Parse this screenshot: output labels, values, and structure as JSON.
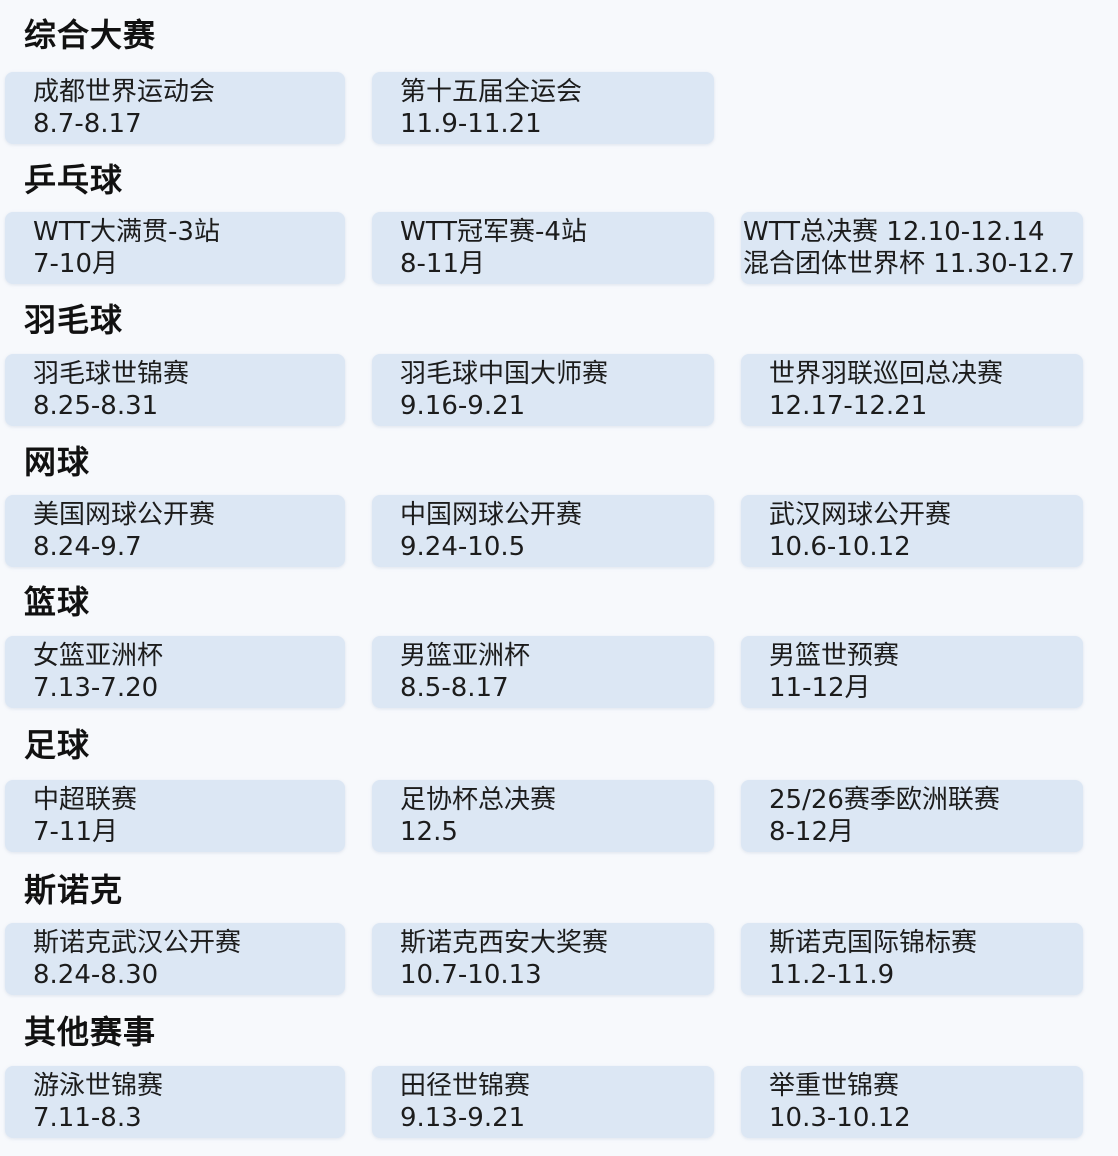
{
  "sections": [
    {
      "title": "综合大赛",
      "events": [
        {
          "name": "成都世界运动会",
          "date": "8.7-8.17"
        },
        {
          "name": "第十五届全运会",
          "date": "11.9-11.21"
        }
      ]
    },
    {
      "title": "乒乓球",
      "events": [
        {
          "name": "WTT大满贯-3站",
          "date": "7-10月"
        },
        {
          "name": "WTT冠军赛-4站",
          "date": "8-11月"
        },
        {
          "name": "WTT总决赛 12.10-12.14",
          "date": "混合团体世界杯 11.30-12.7"
        }
      ]
    },
    {
      "title": "羽毛球",
      "events": [
        {
          "name": "羽毛球世锦赛",
          "date": "8.25-8.31"
        },
        {
          "name": "羽毛球中国大师赛",
          "date": "9.16-9.21"
        },
        {
          "name": "世界羽联巡回总决赛",
          "date": "12.17-12.21"
        }
      ]
    },
    {
      "title": "网球",
      "events": [
        {
          "name": "美国网球公开赛",
          "date": "8.24-9.7"
        },
        {
          "name": "中国网球公开赛",
          "date": "9.24-10.5"
        },
        {
          "name": "武汉网球公开赛",
          "date": "10.6-10.12"
        }
      ]
    },
    {
      "title": "篮球",
      "events": [
        {
          "name": "女篮亚洲杯",
          "date": "7.13-7.20"
        },
        {
          "name": "男篮亚洲杯",
          "date": "8.5-8.17"
        },
        {
          "name": "男篮世预赛",
          "date": "11-12月"
        }
      ]
    },
    {
      "title": "足球",
      "events": [
        {
          "name": "中超联赛",
          "date": "7-11月"
        },
        {
          "name": "足协杯总决赛",
          "date": "12.5"
        },
        {
          "name": "25/26赛季欧洲联赛",
          "date": "8-12月"
        }
      ]
    },
    {
      "title": "斯诺克",
      "events": [
        {
          "name": "斯诺克武汉公开赛",
          "date": "8.24-8.30"
        },
        {
          "name": "斯诺克西安大奖赛",
          "date": "10.7-10.13"
        },
        {
          "name": "斯诺克国际锦标赛",
          "date": "11.2-11.9"
        }
      ]
    },
    {
      "title": "其他赛事",
      "events": [
        {
          "name": "游泳世锦赛",
          "date": "7.11-8.3"
        },
        {
          "name": "田径世锦赛",
          "date": "9.13-9.21"
        },
        {
          "name": "举重世锦赛",
          "date": "10.3-10.12"
        }
      ]
    }
  ],
  "colors": {
    "card": "#dce7f4",
    "background": "#f7f9fc",
    "text": "#1c1c1c"
  }
}
